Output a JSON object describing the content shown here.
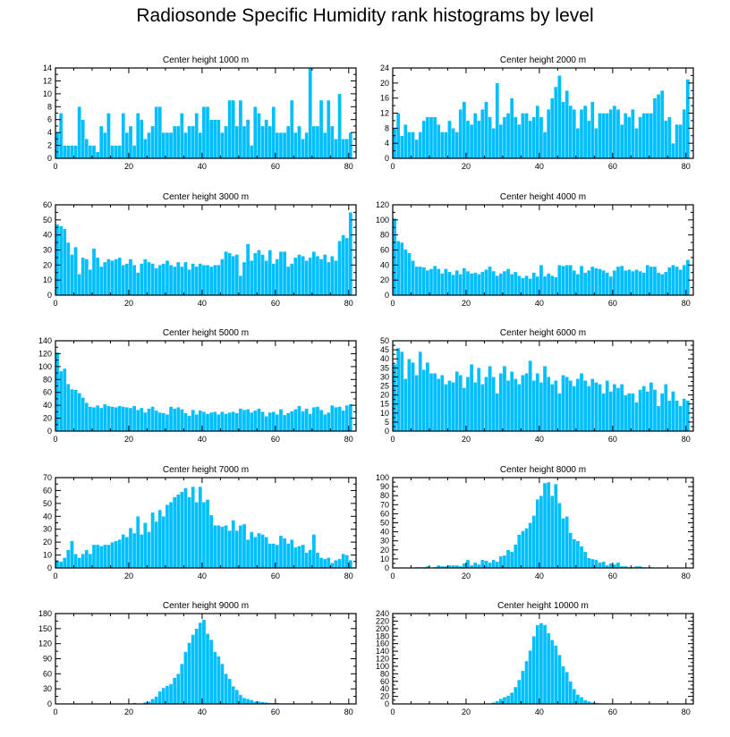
{
  "figure": {
    "title": "Radiosonde Specific Humidity rank histograms by level",
    "bar_color": "#00bfff",
    "bar_edge_color": "#ffffff",
    "axis_color": "#000000",
    "background": "#ffffff"
  },
  "chart_data": [
    {
      "type": "bar",
      "title": "Center height 1000 m",
      "xlabel": "",
      "ylabel": "",
      "xlim": [
        0,
        82
      ],
      "ylim": [
        0,
        14
      ],
      "xticks": [
        0,
        20,
        40,
        60,
        80
      ],
      "yticks": [
        0,
        2,
        4,
        6,
        8,
        10,
        12,
        14
      ],
      "x_start": 0,
      "values": [
        4,
        7,
        2,
        2,
        2,
        2,
        8,
        6,
        3,
        2,
        2,
        1,
        5,
        4,
        7,
        2,
        2,
        2,
        7,
        4,
        5,
        2,
        7,
        6,
        3,
        4,
        5,
        8,
        8,
        4,
        4,
        4,
        5,
        5,
        7,
        4,
        5,
        5,
        7,
        4,
        8,
        8,
        6,
        6,
        6,
        4,
        5,
        9,
        9,
        5,
        9,
        5,
        6,
        2,
        8,
        7,
        5,
        6,
        5,
        8,
        4,
        4,
        4,
        5,
        9,
        4,
        5,
        3,
        4,
        14,
        5,
        5,
        9,
        4,
        9,
        5,
        3,
        10,
        3,
        3,
        4
      ]
    },
    {
      "type": "bar",
      "title": "Center height 2000 m",
      "xlabel": "",
      "ylabel": "",
      "xlim": [
        0,
        82
      ],
      "ylim": [
        0,
        24
      ],
      "xticks": [
        0,
        20,
        40,
        60,
        80
      ],
      "yticks": [
        0,
        4,
        8,
        12,
        16,
        20,
        24
      ],
      "x_start": 0,
      "values": [
        8,
        12,
        6,
        9,
        7,
        7,
        5,
        7,
        10,
        11,
        11,
        11,
        9,
        7,
        7,
        10,
        8,
        7,
        13,
        15,
        10,
        9,
        12,
        10,
        13,
        15,
        11,
        8,
        20,
        9,
        11,
        12,
        16,
        11,
        9,
        12,
        12,
        10,
        11,
        14,
        11,
        7,
        13,
        16,
        19,
        22,
        15,
        18,
        14,
        13,
        8,
        13,
        14,
        10,
        15,
        8,
        12,
        12,
        12,
        13,
        14,
        13,
        9,
        12,
        11,
        13,
        8,
        11,
        12,
        12,
        12,
        16,
        17,
        18,
        10,
        11,
        4,
        9,
        9,
        13,
        21
      ]
    },
    {
      "type": "bar",
      "title": "Center height 3000 m",
      "xlabel": "",
      "ylabel": "",
      "xlim": [
        0,
        82
      ],
      "ylim": [
        0,
        60
      ],
      "xticks": [
        0,
        20,
        40,
        60,
        80
      ],
      "yticks": [
        0,
        10,
        20,
        30,
        40,
        50,
        60
      ],
      "x_start": 0,
      "values": [
        47,
        46,
        44,
        35,
        27,
        32,
        14,
        25,
        24,
        17,
        31,
        25,
        19,
        22,
        24,
        23,
        24,
        25,
        20,
        21,
        24,
        20,
        15,
        21,
        24,
        22,
        21,
        18,
        20,
        21,
        23,
        20,
        19,
        22,
        19,
        22,
        17,
        21,
        19,
        21,
        20,
        20,
        19,
        20,
        20,
        24,
        29,
        28,
        26,
        27,
        13,
        22,
        34,
        23,
        28,
        30,
        27,
        23,
        30,
        21,
        24,
        29,
        29,
        19,
        21,
        25,
        27,
        26,
        23,
        25,
        29,
        26,
        24,
        27,
        22,
        26,
        23,
        36,
        40,
        38,
        55
      ]
    },
    {
      "type": "bar",
      "title": "Center height 4000 m",
      "xlabel": "",
      "ylabel": "",
      "xlim": [
        0,
        82
      ],
      "ylim": [
        0,
        120
      ],
      "xticks": [
        0,
        20,
        40,
        60,
        80
      ],
      "yticks": [
        0,
        20,
        40,
        60,
        80,
        100,
        120
      ],
      "x_start": 0,
      "values": [
        102,
        72,
        70,
        61,
        56,
        46,
        38,
        38,
        37,
        33,
        35,
        39,
        35,
        29,
        35,
        31,
        27,
        33,
        28,
        36,
        32,
        29,
        30,
        28,
        31,
        34,
        38,
        32,
        26,
        29,
        32,
        35,
        28,
        31,
        26,
        23,
        26,
        22,
        30,
        25,
        40,
        25,
        29,
        26,
        24,
        40,
        39,
        40,
        40,
        33,
        28,
        39,
        30,
        33,
        38,
        36,
        35,
        33,
        30,
        25,
        33,
        38,
        39,
        33,
        34,
        32,
        34,
        32,
        30,
        40,
        38,
        38,
        30,
        28,
        31,
        37,
        40,
        38,
        34,
        40,
        47
      ]
    },
    {
      "type": "bar",
      "title": "Center height 5000 m",
      "xlabel": "",
      "ylabel": "",
      "xlim": [
        0,
        82
      ],
      "ylim": [
        0,
        140
      ],
      "xticks": [
        0,
        20,
        40,
        60,
        80
      ],
      "yticks": [
        0,
        20,
        40,
        60,
        80,
        100,
        120,
        140
      ],
      "x_start": 0,
      "values": [
        122,
        93,
        97,
        73,
        65,
        64,
        59,
        52,
        44,
        38,
        37,
        40,
        36,
        42,
        39,
        38,
        37,
        39,
        38,
        37,
        36,
        39,
        33,
        36,
        29,
        35,
        38,
        32,
        29,
        28,
        26,
        38,
        35,
        37,
        34,
        28,
        24,
        33,
        26,
        32,
        30,
        27,
        29,
        30,
        26,
        30,
        27,
        29,
        30,
        28,
        35,
        33,
        34,
        29,
        32,
        35,
        30,
        23,
        29,
        30,
        26,
        34,
        25,
        28,
        31,
        34,
        39,
        31,
        35,
        27,
        37,
        38,
        33,
        26,
        29,
        40,
        37,
        38,
        32,
        40,
        42
      ]
    },
    {
      "type": "bar",
      "title": "Center height 6000 m",
      "xlabel": "",
      "ylabel": "",
      "xlim": [
        0,
        82
      ],
      "ylim": [
        0,
        50
      ],
      "xticks": [
        0,
        20,
        40,
        60,
        80
      ],
      "yticks": [
        0,
        5,
        10,
        15,
        20,
        25,
        30,
        35,
        40,
        45,
        50
      ],
      "x_start": 0,
      "values": [
        37,
        46,
        44,
        29,
        40,
        38,
        31,
        44,
        34,
        38,
        32,
        32,
        29,
        31,
        26,
        28,
        27,
        33,
        31,
        24,
        30,
        37,
        27,
        35,
        26,
        30,
        36,
        30,
        21,
        32,
        36,
        28,
        33,
        29,
        26,
        31,
        32,
        39,
        28,
        32,
        27,
        36,
        30,
        26,
        28,
        21,
        31,
        30,
        28,
        25,
        29,
        32,
        28,
        25,
        29,
        27,
        26,
        21,
        28,
        22,
        26,
        24,
        26,
        20,
        21,
        21,
        16,
        23,
        25,
        22,
        27,
        23,
        14,
        21,
        26,
        17,
        22,
        17,
        14,
        18,
        17
      ]
    },
    {
      "type": "bar",
      "title": "Center height 7000 m",
      "xlabel": "",
      "ylabel": "",
      "xlim": [
        0,
        82
      ],
      "ylim": [
        0,
        70
      ],
      "xticks": [
        0,
        20,
        40,
        60,
        80
      ],
      "yticks": [
        0,
        10,
        20,
        30,
        40,
        50,
        60,
        70
      ],
      "x_start": 0,
      "values": [
        6,
        5,
        8,
        14,
        21,
        11,
        8,
        11,
        14,
        11,
        18,
        18,
        17,
        18,
        18,
        20,
        21,
        22,
        26,
        24,
        31,
        27,
        40,
        26,
        35,
        28,
        43,
        36,
        45,
        40,
        49,
        51,
        55,
        57,
        59,
        62,
        55,
        63,
        51,
        63,
        51,
        53,
        41,
        33,
        33,
        32,
        33,
        29,
        37,
        29,
        33,
        34,
        22,
        28,
        24,
        27,
        26,
        24,
        19,
        19,
        18,
        25,
        23,
        19,
        22,
        16,
        17,
        18,
        12,
        14,
        26,
        12,
        8,
        7,
        8,
        4,
        6,
        7,
        11,
        10,
        6
      ]
    },
    {
      "type": "bar",
      "title": "Center height 8000 m",
      "xlabel": "",
      "ylabel": "",
      "xlim": [
        0,
        82
      ],
      "ylim": [
        0,
        100
      ],
      "xticks": [
        0,
        20,
        40,
        60,
        80
      ],
      "yticks": [
        0,
        10,
        20,
        30,
        40,
        50,
        60,
        70,
        80,
        90,
        100
      ],
      "x_start": 0,
      "values": [
        0,
        0,
        0,
        0,
        0,
        0,
        1,
        1,
        1,
        2,
        0,
        1,
        3,
        2,
        2,
        3,
        3,
        3,
        2,
        5,
        9,
        3,
        6,
        4,
        9,
        8,
        6,
        9,
        7,
        13,
        14,
        20,
        18,
        26,
        37,
        41,
        44,
        50,
        58,
        76,
        80,
        94,
        95,
        80,
        93,
        72,
        55,
        57,
        39,
        32,
        30,
        24,
        18,
        11,
        10,
        9,
        6,
        7,
        3,
        5,
        4,
        6,
        2,
        2,
        1,
        1,
        2,
        2,
        1,
        0,
        1,
        0,
        0,
        0,
        0,
        0,
        0,
        0,
        0,
        0,
        0
      ]
    },
    {
      "type": "bar",
      "title": "Center height 9000 m",
      "xlabel": "",
      "ylabel": "",
      "xlim": [
        0,
        82
      ],
      "ylim": [
        0,
        180
      ],
      "xticks": [
        0,
        20,
        40,
        60,
        80
      ],
      "yticks": [
        0,
        30,
        60,
        90,
        120,
        150,
        180
      ],
      "x_start": 0,
      "values": [
        0,
        0,
        0,
        0,
        0,
        0,
        0,
        0,
        0,
        0,
        0,
        0,
        0,
        0,
        0,
        0,
        0,
        0,
        0,
        0,
        0,
        2,
        1,
        1,
        3,
        5,
        10,
        15,
        25,
        32,
        36,
        40,
        52,
        60,
        80,
        104,
        122,
        138,
        150,
        162,
        168,
        140,
        128,
        104,
        95,
        80,
        60,
        50,
        35,
        28,
        18,
        12,
        10,
        8,
        5,
        5,
        4,
        3,
        2,
        2,
        2,
        1,
        1,
        1,
        1,
        1,
        0,
        0,
        0,
        0,
        0,
        0,
        0,
        0,
        0,
        0,
        0,
        0,
        0,
        0,
        0
      ]
    },
    {
      "type": "bar",
      "title": "Center height 10000 m",
      "xlabel": "",
      "ylabel": "",
      "xlim": [
        0,
        82
      ],
      "ylim": [
        0,
        240
      ],
      "xticks": [
        0,
        20,
        40,
        60,
        80
      ],
      "yticks": [
        0,
        20,
        40,
        60,
        80,
        100,
        120,
        140,
        160,
        180,
        200,
        220,
        240
      ],
      "x_start": 0,
      "values": [
        0,
        0,
        0,
        0,
        0,
        0,
        0,
        0,
        0,
        0,
        0,
        0,
        0,
        0,
        0,
        0,
        0,
        0,
        0,
        0,
        0,
        0,
        0,
        0,
        1,
        1,
        2,
        4,
        8,
        14,
        18,
        22,
        30,
        45,
        64,
        88,
        114,
        142,
        180,
        210,
        215,
        210,
        188,
        170,
        155,
        130,
        100,
        85,
        60,
        40,
        25,
        18,
        10,
        7,
        4,
        3,
        2,
        1,
        0,
        0,
        0,
        0,
        0,
        0,
        0,
        0,
        0,
        0,
        0,
        0,
        0,
        0,
        0,
        0,
        0,
        0,
        0,
        0,
        0,
        0,
        0
      ]
    }
  ]
}
